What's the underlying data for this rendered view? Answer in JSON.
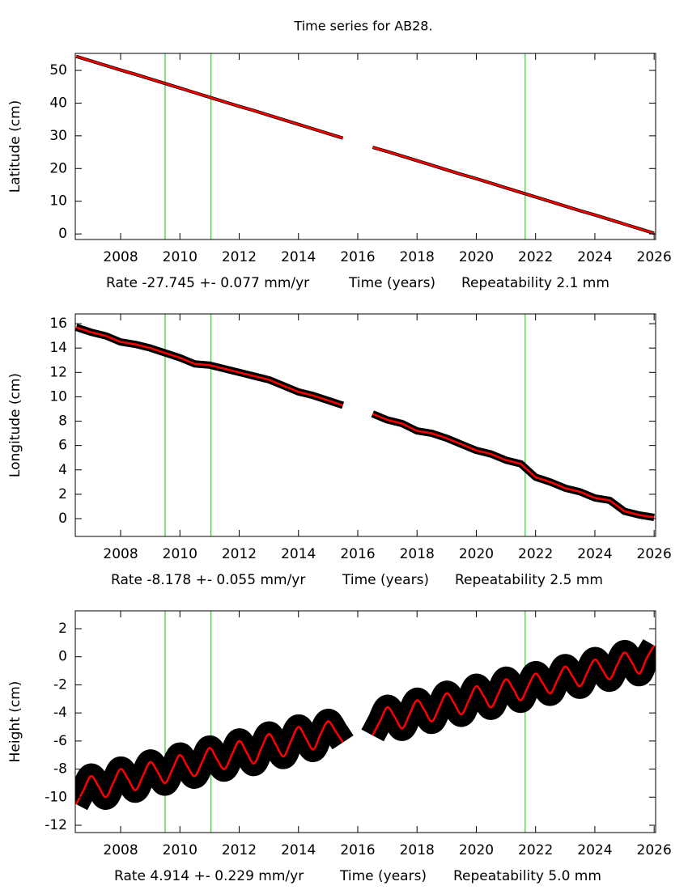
{
  "title": "Time series for AB28.",
  "chart_data": [
    {
      "type": "line",
      "ylabel": "Latitude (cm)",
      "rate": "Rate -27.745 +- 0.077 mm/yr",
      "xlabel": "Time (years)",
      "repeatability": "Repeatability 2.1 mm",
      "xlim": [
        2006.47,
        2026.05
      ],
      "ylim": [
        -1.7,
        55.2
      ],
      "xticks": [
        2008,
        2010,
        2012,
        2014,
        2016,
        2018,
        2020,
        2022,
        2024,
        2026
      ],
      "yticks": [
        0,
        10,
        20,
        30,
        40,
        50
      ],
      "vlines": [
        2009.5,
        2011.05,
        2021.65
      ],
      "vline_color": "#00c800",
      "x": [
        2006.5,
        2007.0,
        2007.5,
        2008.0,
        2008.5,
        2009.0,
        2009.5,
        2010.0,
        2010.5,
        2011.0,
        2011.5,
        2012.0,
        2012.5,
        2013.0,
        2013.5,
        2014.0,
        2014.5,
        2015.0,
        2015.5,
        2016.0,
        2016.5,
        2017.0,
        2017.5,
        2018.0,
        2018.5,
        2019.0,
        2019.5,
        2020.0,
        2020.5,
        2021.0,
        2021.5,
        2022.0,
        2022.5,
        2023.0,
        2023.5,
        2024.0,
        2024.5,
        2025.0,
        2025.5,
        2026.0
      ],
      "series": [
        {
          "color": "#000000",
          "error": 0.5,
          "values": [
            54.3,
            52.9,
            51.5,
            50.1,
            48.8,
            47.4,
            46.0,
            44.6,
            43.2,
            41.8,
            40.4,
            39.0,
            37.7,
            36.3,
            34.9,
            33.5,
            32.1,
            30.7,
            29.3,
            null,
            26.5,
            25.2,
            23.8,
            22.4,
            21.0,
            19.6,
            18.2,
            16.9,
            15.5,
            14.1,
            12.7,
            11.3,
            9.9,
            8.5,
            7.1,
            5.8,
            4.4,
            3.0,
            1.6,
            0.2
          ]
        },
        {
          "color": "#ff0000",
          "values": [
            54.3,
            52.9,
            51.5,
            50.1,
            48.8,
            47.4,
            46.0,
            44.6,
            43.2,
            41.8,
            40.4,
            39.0,
            37.7,
            36.3,
            34.9,
            33.5,
            32.1,
            30.7,
            29.3,
            null,
            26.5,
            25.2,
            23.8,
            22.4,
            21.0,
            19.6,
            18.2,
            16.9,
            15.5,
            14.1,
            12.7,
            11.3,
            9.9,
            8.5,
            7.1,
            5.8,
            4.4,
            3.0,
            1.6,
            0.2
          ]
        }
      ]
    },
    {
      "type": "line",
      "ylabel": "Longitude (cm)",
      "rate": "Rate -8.178 +- 0.055 mm/yr",
      "xlabel": "Time (years)",
      "repeatability": "Repeatability 2.5 mm",
      "xlim": [
        2006.47,
        2026.05
      ],
      "ylim": [
        -1.46,
        16.8
      ],
      "xticks": [
        2008,
        2010,
        2012,
        2014,
        2016,
        2018,
        2020,
        2022,
        2024,
        2026
      ],
      "yticks": [
        0,
        2,
        4,
        6,
        8,
        10,
        12,
        14,
        16
      ],
      "vlines": [
        2009.5,
        2011.05,
        2021.65
      ],
      "vline_color": "#00c800",
      "x": [
        2006.5,
        2007.0,
        2007.5,
        2008.0,
        2008.5,
        2009.0,
        2009.5,
        2010.0,
        2010.5,
        2011.0,
        2011.5,
        2012.0,
        2012.5,
        2013.0,
        2013.5,
        2014.0,
        2014.5,
        2015.0,
        2015.5,
        2016.0,
        2016.5,
        2017.0,
        2017.5,
        2018.0,
        2018.5,
        2019.0,
        2019.5,
        2020.0,
        2020.5,
        2021.0,
        2021.5,
        2022.0,
        2022.5,
        2023.0,
        2023.5,
        2024.0,
        2024.5,
        2025.0,
        2025.5,
        2026.0
      ],
      "series": [
        {
          "color": "#000000",
          "error": 0.3,
          "values": [
            15.7,
            15.3,
            15.0,
            14.5,
            14.3,
            14.0,
            13.6,
            13.2,
            12.7,
            12.6,
            12.3,
            12.0,
            11.7,
            11.4,
            10.9,
            10.4,
            10.1,
            9.7,
            9.3,
            null,
            8.6,
            8.1,
            7.8,
            7.2,
            7.0,
            6.6,
            6.1,
            5.6,
            5.3,
            4.8,
            4.5,
            3.4,
            3.0,
            2.5,
            2.2,
            1.7,
            1.5,
            0.6,
            0.3,
            0.1
          ]
        },
        {
          "color": "#ff0000",
          "values": [
            15.7,
            15.3,
            15.0,
            14.5,
            14.3,
            14.0,
            13.6,
            13.2,
            12.7,
            12.6,
            12.3,
            12.0,
            11.7,
            11.4,
            10.9,
            10.4,
            10.1,
            9.7,
            9.3,
            null,
            8.6,
            8.1,
            7.8,
            7.2,
            7.0,
            6.6,
            6.1,
            5.6,
            5.3,
            4.8,
            4.5,
            3.4,
            3.0,
            2.5,
            2.2,
            1.7,
            1.5,
            0.6,
            0.3,
            0.1
          ]
        }
      ]
    },
    {
      "type": "line",
      "smooth": true,
      "ylabel": "Height (cm)",
      "rate": "Rate 4.914 +- 0.229 mm/yr",
      "xlabel": "Time (years)",
      "repeatability": "Repeatability 5.0 mm",
      "xlim": [
        2006.47,
        2026.05
      ],
      "ylim": [
        -12.52,
        3.27
      ],
      "xticks": [
        2008,
        2010,
        2012,
        2014,
        2016,
        2018,
        2020,
        2022,
        2024,
        2026
      ],
      "yticks": [
        -12,
        -10,
        -8,
        -6,
        -4,
        -2,
        0,
        2
      ],
      "vlines": [
        2009.5,
        2011.05,
        2021.65
      ],
      "vline_color": "#00c800",
      "x": [
        2006.5,
        2006.75,
        2007.0,
        2007.25,
        2007.5,
        2007.75,
        2008.0,
        2008.25,
        2008.5,
        2008.75,
        2009.0,
        2009.25,
        2009.5,
        2009.75,
        2010.0,
        2010.25,
        2010.5,
        2010.75,
        2011.0,
        2011.25,
        2011.5,
        2011.75,
        2012.0,
        2012.25,
        2012.5,
        2012.75,
        2013.0,
        2013.25,
        2013.5,
        2013.75,
        2014.0,
        2014.25,
        2014.5,
        2014.75,
        2015.0,
        2015.25,
        2015.5,
        2016.0,
        2016.5,
        2016.75,
        2017.0,
        2017.25,
        2017.5,
        2017.75,
        2018.0,
        2018.25,
        2018.5,
        2018.75,
        2019.0,
        2019.25,
        2019.5,
        2019.75,
        2020.0,
        2020.25,
        2020.5,
        2020.75,
        2021.0,
        2021.25,
        2021.5,
        2021.75,
        2022.0,
        2022.25,
        2022.5,
        2022.75,
        2023.0,
        2023.25,
        2023.5,
        2023.75,
        2024.0,
        2024.25,
        2024.5,
        2024.75,
        2025.0,
        2025.25,
        2025.5,
        2025.75,
        2026.0
      ],
      "series": [
        {
          "color": "#000000",
          "error": 0.9,
          "values": [
            -10.5,
            -9.5,
            -8.5,
            -9.2,
            -10.0,
            -9.0,
            -8.0,
            -8.7,
            -9.5,
            -8.5,
            -7.5,
            -8.2,
            -9.0,
            -8.0,
            -7.0,
            -7.8,
            -8.5,
            -7.5,
            -6.5,
            -7.3,
            -8.0,
            -7.0,
            -6.0,
            -6.8,
            -7.6,
            -6.5,
            -5.5,
            -6.3,
            -7.1,
            -6.0,
            -5.0,
            -5.8,
            -6.6,
            -5.5,
            -4.6,
            -5.3,
            -6.1,
            null,
            -5.6,
            -4.6,
            -3.6,
            -4.3,
            -5.1,
            -4.1,
            -3.1,
            -3.8,
            -4.6,
            -3.6,
            -2.6,
            -3.3,
            -4.1,
            -3.1,
            -2.1,
            -2.8,
            -3.6,
            -2.6,
            -1.6,
            -2.3,
            -3.1,
            -2.1,
            -1.2,
            -1.9,
            -2.6,
            -1.6,
            -0.7,
            -1.4,
            -2.1,
            -1.1,
            -0.2,
            -0.9,
            -1.6,
            -0.6,
            0.3,
            -0.4,
            -1.2,
            -0.1,
            0.8
          ]
        },
        {
          "color": "#ff0000",
          "values": [
            -10.5,
            -9.5,
            -8.5,
            -9.2,
            -10.0,
            -9.0,
            -8.0,
            -8.7,
            -9.5,
            -8.5,
            -7.5,
            -8.2,
            -9.0,
            -8.0,
            -7.0,
            -7.8,
            -8.5,
            -7.5,
            -6.5,
            -7.3,
            -8.0,
            -7.0,
            -6.0,
            -6.8,
            -7.6,
            -6.5,
            -5.5,
            -6.3,
            -7.1,
            -6.0,
            -5.0,
            -5.8,
            -6.6,
            -5.5,
            -4.6,
            -5.3,
            -6.1,
            null,
            -5.6,
            -4.6,
            -3.6,
            -4.3,
            -5.1,
            -4.1,
            -3.1,
            -3.8,
            -4.6,
            -3.6,
            -2.6,
            -3.3,
            -4.1,
            -3.1,
            -2.1,
            -2.8,
            -3.6,
            -2.6,
            -1.6,
            -2.3,
            -3.1,
            -2.1,
            -1.2,
            -1.9,
            -2.6,
            -1.6,
            -0.7,
            -1.4,
            -2.1,
            -1.1,
            -0.2,
            -0.9,
            -1.6,
            -0.6,
            0.3,
            -0.4,
            -1.2,
            -0.1,
            0.8
          ]
        }
      ]
    }
  ]
}
